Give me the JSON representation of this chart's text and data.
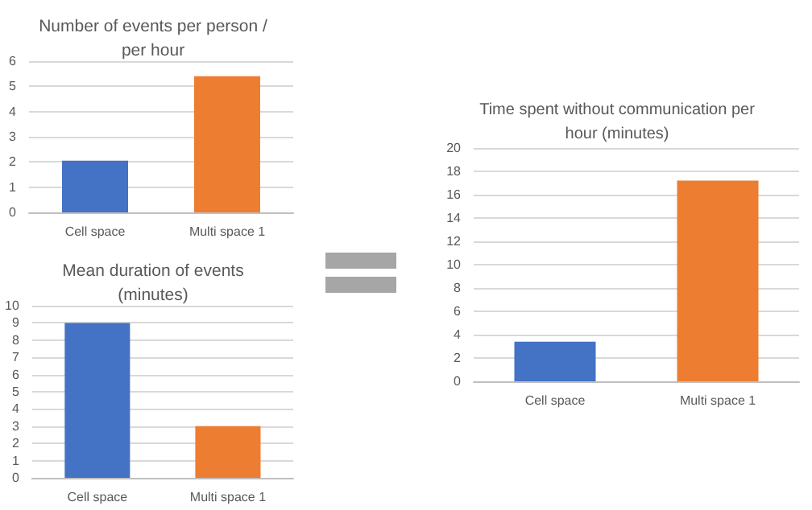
{
  "chart_data": [
    {
      "type": "bar",
      "title": "Number of events per person /\nper hour",
      "categories": [
        "Cell space",
        "Multi space 1"
      ],
      "values": [
        2.05,
        5.4
      ],
      "colors": [
        "#4472c4",
        "#ed7d31"
      ],
      "ylim": [
        0,
        6
      ],
      "yticks": [
        0,
        1,
        2,
        3,
        4,
        5,
        6
      ],
      "grid": "y"
    },
    {
      "type": "bar",
      "title": "Mean duration of events\n(minutes)",
      "categories": [
        "Cell space",
        "Multi space 1"
      ],
      "values": [
        9,
        3
      ],
      "colors": [
        "#4472c4",
        "#ed7d31"
      ],
      "ylim": [
        0,
        10
      ],
      "yticks": [
        0,
        1,
        2,
        3,
        4,
        5,
        6,
        7,
        8,
        9,
        10
      ],
      "grid": "y"
    },
    {
      "type": "bar",
      "title": "Time spent without communication per\nhour (minutes)",
      "categories": [
        "Cell space",
        "Multi space 1"
      ],
      "values": [
        3.4,
        17.2
      ],
      "colors": [
        "#4472c4",
        "#ed7d31"
      ],
      "ylim": [
        0,
        20
      ],
      "yticks": [
        0,
        2,
        4,
        6,
        8,
        10,
        12,
        14,
        16,
        18,
        20
      ],
      "grid": "y"
    }
  ]
}
